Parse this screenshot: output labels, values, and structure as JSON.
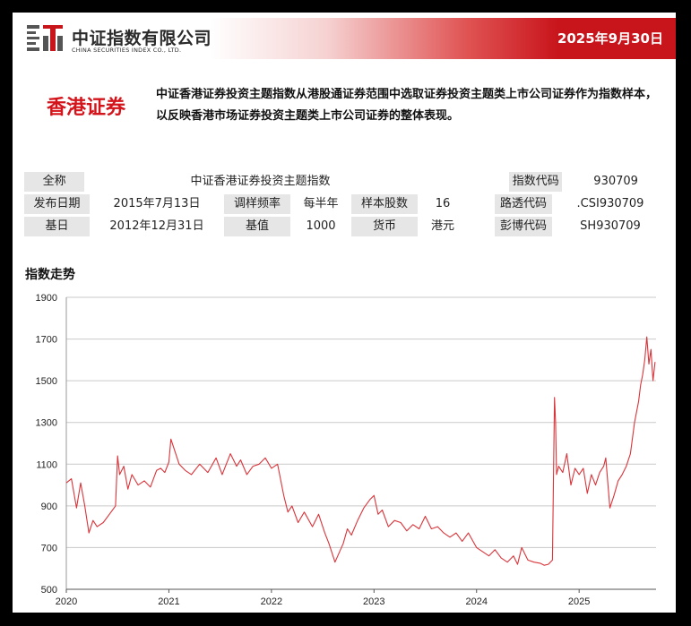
{
  "header": {
    "date": "2025年9月30日",
    "logo_cn": "中证指数有限公司",
    "logo_en": "CHINA SECURITIES INDEX CO., LTD."
  },
  "index": {
    "name": "香港证券",
    "description": "中证香港证券投资主题指数从港股通证券范围中选取证券投资主题类上市公司证券作为指数样本，以反映香港市场证券投资主题类上市公司证券的整体表现。"
  },
  "info": {
    "full_name_label": "全称",
    "full_name": "中证香港证券投资主题指数",
    "code_label": "指数代码",
    "code": "930709",
    "launch_label": "发布日期",
    "launch": "2015年7月13日",
    "rebalance_label": "调样频率",
    "rebalance": "每半年",
    "constituents_label": "样本股数",
    "constituents": "16",
    "reuters_label": "路透代码",
    "reuters": ".CSI930709",
    "base_date_label": "基日",
    "base_date": "2012年12月31日",
    "base_value_label": "基值",
    "base_value": "1000",
    "currency_label": "货币",
    "currency": "港元",
    "bloomberg_label": "彭博代码",
    "bloomberg": "SH930709"
  },
  "chart_title": "指数走势",
  "colors": {
    "accent": "#c8141b",
    "line": "#d9343a",
    "grid": "#c9c9c9"
  },
  "chart_data": {
    "type": "line",
    "title": "指数走势",
    "xlabel": "",
    "ylabel": "",
    "x_ticks": [
      "2020",
      "2021",
      "2022",
      "2023",
      "2024",
      "2025"
    ],
    "y_ticks": [
      500,
      700,
      900,
      1100,
      1300,
      1500,
      1700,
      1900
    ],
    "xlim": [
      2020.0,
      2025.75
    ],
    "ylim": [
      500,
      1900
    ],
    "grid": true,
    "series": [
      {
        "x": [
          2020.0,
          2020.05,
          2020.1,
          2020.14,
          2020.18,
          2020.22,
          2020.26,
          2020.3,
          2020.36,
          2020.42,
          2020.48,
          2020.5,
          2020.52,
          2020.56,
          2020.6,
          2020.64,
          2020.7,
          2020.76,
          2020.82,
          2020.88,
          2020.92,
          2020.96,
          2021.0,
          2021.02,
          2021.06,
          2021.1,
          2021.16,
          2021.22,
          2021.3,
          2021.38,
          2021.46,
          2021.52,
          2021.6,
          2021.66,
          2021.7,
          2021.76,
          2021.82,
          2021.88,
          2021.94,
          2022.0,
          2022.06,
          2022.12,
          2022.16,
          2022.2,
          2022.26,
          2022.32,
          2022.4,
          2022.46,
          2022.52,
          2022.56,
          2022.62,
          2022.7,
          2022.74,
          2022.78,
          2022.84,
          2022.9,
          2022.96,
          2023.0,
          2023.04,
          2023.08,
          2023.14,
          2023.2,
          2023.26,
          2023.32,
          2023.38,
          2023.44,
          2023.5,
          2023.56,
          2023.62,
          2023.68,
          2023.74,
          2023.8,
          2023.86,
          2023.92,
          2024.0,
          2024.06,
          2024.12,
          2024.18,
          2024.24,
          2024.3,
          2024.36,
          2024.4,
          2024.44,
          2024.5,
          2024.56,
          2024.62,
          2024.66,
          2024.7,
          2024.74,
          2024.76,
          2024.77,
          2024.78,
          2024.8,
          2024.84,
          2024.88,
          2024.92,
          2024.96,
          2025.0,
          2025.04,
          2025.08,
          2025.12,
          2025.16,
          2025.2,
          2025.24,
          2025.26,
          2025.3,
          2025.34,
          2025.38,
          2025.42,
          2025.46,
          2025.5,
          2025.54,
          2025.58,
          2025.6,
          2025.62,
          2025.64,
          2025.66,
          2025.68,
          2025.7,
          2025.72,
          2025.74
        ],
        "y": [
          1010,
          1030,
          890,
          1010,
          900,
          770,
          830,
          800,
          820,
          860,
          900,
          1140,
          1050,
          1090,
          980,
          1050,
          1000,
          1020,
          990,
          1070,
          1080,
          1060,
          1110,
          1220,
          1160,
          1100,
          1070,
          1050,
          1100,
          1060,
          1130,
          1050,
          1150,
          1090,
          1120,
          1050,
          1090,
          1100,
          1130,
          1080,
          1100,
          950,
          870,
          900,
          820,
          870,
          800,
          860,
          770,
          720,
          630,
          720,
          790,
          760,
          830,
          890,
          930,
          950,
          860,
          880,
          800,
          830,
          820,
          780,
          810,
          790,
          850,
          790,
          800,
          770,
          750,
          770,
          730,
          770,
          700,
          680,
          660,
          690,
          650,
          630,
          660,
          620,
          700,
          640,
          630,
          625,
          615,
          620,
          640,
          1420,
          1300,
          1050,
          1090,
          1060,
          1150,
          1000,
          1080,
          1050,
          1080,
          960,
          1050,
          1000,
          1060,
          1090,
          1130,
          890,
          950,
          1020,
          1050,
          1090,
          1150,
          1300,
          1400,
          1480,
          1530,
          1600,
          1710,
          1580,
          1650,
          1500,
          1590
        ]
      }
    ]
  }
}
